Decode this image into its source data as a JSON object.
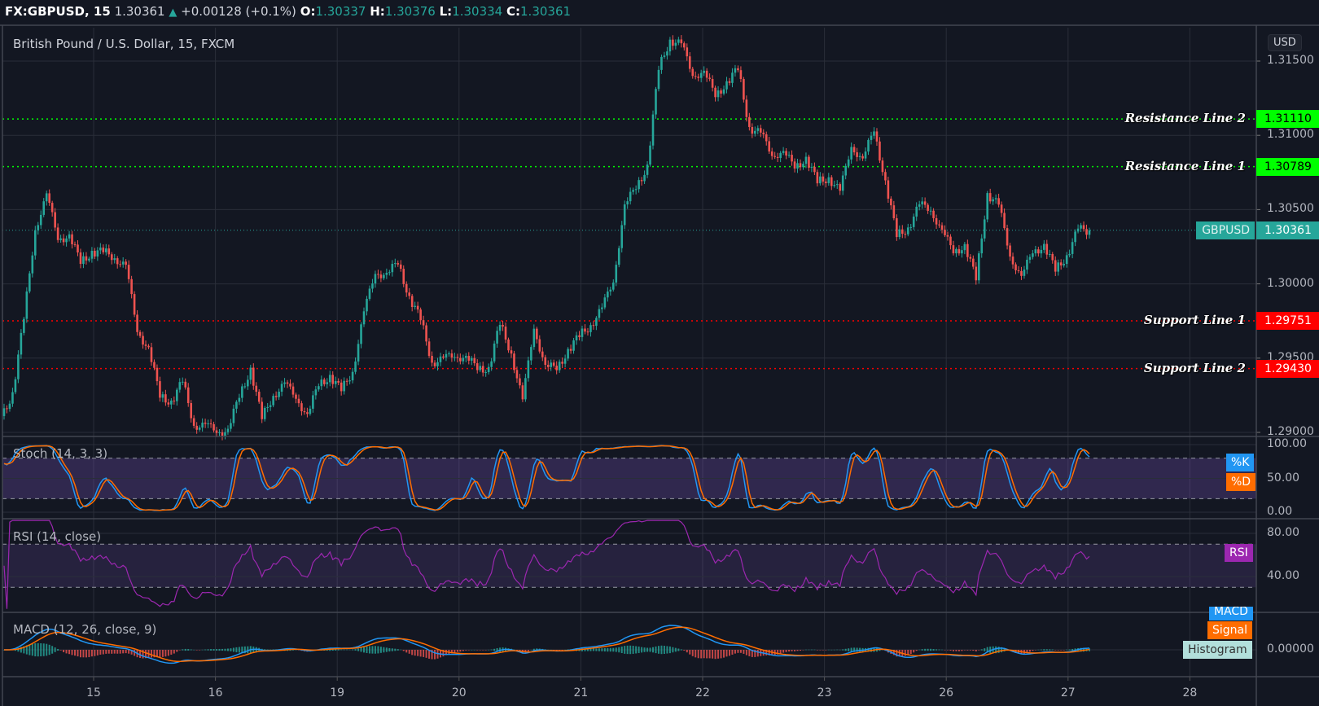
{
  "header": {
    "symbol": "FX:GBPUSD, 15",
    "last": "1.30361",
    "direction": "up",
    "change": "+0.00128 (+0.1%)",
    "ohlc": [
      {
        "label": "O:",
        "value": "1.30337"
      },
      {
        "label": "H:",
        "value": "1.30376"
      },
      {
        "label": "L:",
        "value": "1.30334"
      },
      {
        "label": "C:",
        "value": "1.30361"
      }
    ]
  },
  "chart_title": "British Pound / U.S. Dollar, 15, FXCM",
  "currency": "USD",
  "colors": {
    "background": "#131722",
    "grid": "#2a2e39",
    "up": "#26a69a",
    "down": "#ef5350",
    "resistance": "#00ff00",
    "support": "#ff0000",
    "stoch_k": "#2196f3",
    "stoch_d": "#ff6d00",
    "rsi": "#9c27b0",
    "macd": "#2196f3",
    "signal": "#ff6d00",
    "histogram": "#b2dfdb"
  },
  "chart_data": {
    "type": "candlestick",
    "interval": "15",
    "price_ticks": [
      "1.31500",
      "1.31000",
      "1.30500",
      "1.30000",
      "1.29500",
      "1.29000"
    ],
    "ylim": [
      1.2895,
      1.3172
    ],
    "date_ticks": [
      "15",
      "16",
      "19",
      "20",
      "21",
      "22",
      "23",
      "26",
      "27",
      "28"
    ],
    "close_path": [
      1.2911,
      1.2926,
      1.2976,
      1.3038,
      1.3058,
      1.3033,
      1.303,
      1.3016,
      1.3021,
      1.3021,
      1.3019,
      1.301,
      1.2971,
      1.2954,
      1.2926,
      1.292,
      1.2934,
      1.2906,
      1.2903,
      1.2903,
      1.2899,
      1.2926,
      1.2942,
      1.2909,
      1.2926,
      1.2931,
      1.2926,
      1.2909,
      1.2934,
      1.2937,
      1.2928,
      1.2942,
      1.2979,
      1.301,
      1.3004,
      1.3016,
      1.299,
      1.2976,
      1.2948,
      1.2948,
      1.2954,
      1.2948,
      1.2945,
      1.2942,
      1.2973,
      1.2954,
      1.292,
      1.2973,
      1.2942,
      1.2945,
      1.2954,
      1.2965,
      1.2973,
      1.2982,
      1.3004,
      1.305,
      1.3067,
      1.3078,
      1.3145,
      1.3165,
      1.316,
      1.3143,
      1.314,
      1.3129,
      1.3134,
      1.3145,
      1.3106,
      1.31,
      1.3089,
      1.3086,
      1.3081,
      1.3083,
      1.3069,
      1.3072,
      1.3061,
      1.3095,
      1.3081,
      1.3106,
      1.3067,
      1.3033,
      1.3038,
      1.3052,
      1.3052,
      1.3033,
      1.3024,
      1.3024,
      1.3004,
      1.3061,
      1.3052,
      1.3021,
      1.3002,
      1.3024,
      1.3024,
      1.301,
      1.3019,
      1.3036,
      1.30361
    ],
    "levels": [
      {
        "name": "Resistance Line 2",
        "value": 1.3111,
        "label": "1.31110",
        "kind": "resistance"
      },
      {
        "name": "Resistance Line 1",
        "value": 1.30789,
        "label": "1.30789",
        "kind": "resistance"
      },
      {
        "name": "Support Line 1",
        "value": 1.29751,
        "label": "1.29751",
        "kind": "support"
      },
      {
        "name": "Support Line 2",
        "value": 1.2943,
        "label": "1.29430",
        "kind": "support"
      }
    ],
    "current": {
      "label": "GBPUSD",
      "value": 1.30361,
      "text": "1.30361"
    },
    "indicators": {
      "stoch": {
        "title": "Stoch (14, 3, 3)",
        "ticks": [
          "100.00",
          "50.00",
          "0.00"
        ],
        "bands": [
          20,
          80
        ],
        "legend": [
          "%K",
          "%D"
        ]
      },
      "rsi": {
        "title": "RSI (14, close)",
        "ticks": [
          "80.00",
          "40.00"
        ],
        "bands": [
          30,
          70
        ],
        "legend": [
          "RSI"
        ]
      },
      "macd": {
        "title": "MACD (12, 26, close, 9)",
        "ticks": [
          "0.00000"
        ],
        "legend": [
          "MACD",
          "Signal",
          "Histogram"
        ]
      }
    }
  }
}
